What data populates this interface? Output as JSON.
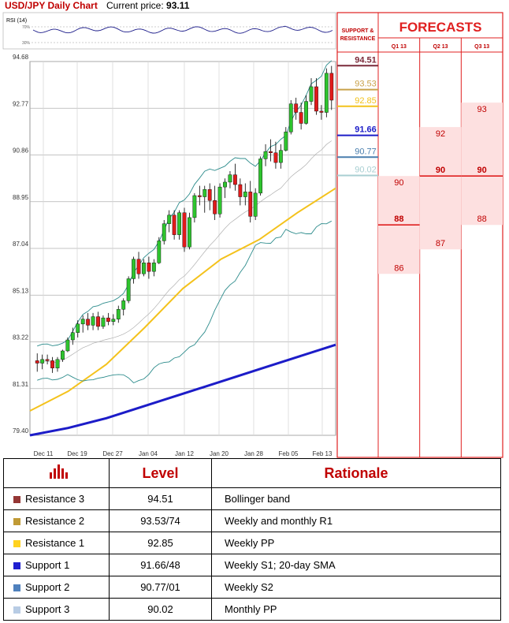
{
  "header": {
    "title": "USD/JPY Daily Chart",
    "current_price_label": "Current price:",
    "current_price": "93.11"
  },
  "rsi": {
    "label": "RSI (14)",
    "upper_tick": "70%",
    "lower_tick": "30%"
  },
  "right_panel": {
    "support_resistance_title": "SUPPORT & RESISTANCE",
    "forecasts_title": "FORECASTS",
    "quarters": [
      "Q1 13",
      "Q2 13",
      "Q3 13"
    ]
  },
  "chart_data": {
    "type": "line",
    "title": "USD/JPY Daily Chart",
    "ylim": [
      79.4,
      94.68
    ],
    "y_ticks": [
      "94.68",
      "92.77",
      "90.86",
      "88.95",
      "87.04",
      "85.13",
      "83.22",
      "81.31",
      "79.40"
    ],
    "x_ticks": [
      "Dec 11",
      "Dec 19",
      "Dec 27",
      "Jan 04",
      "Jan 12",
      "Jan 20",
      "Jan 28",
      "Feb 05",
      "Feb 13"
    ],
    "candles": [
      {
        "o": 82.45,
        "h": 82.75,
        "l": 82.0,
        "c": 82.35
      },
      {
        "o": 82.35,
        "h": 82.7,
        "l": 82.1,
        "c": 82.5
      },
      {
        "o": 82.5,
        "h": 82.7,
        "l": 82.3,
        "c": 82.45
      },
      {
        "o": 82.45,
        "h": 82.6,
        "l": 81.95,
        "c": 82.15
      },
      {
        "o": 82.15,
        "h": 82.6,
        "l": 82.0,
        "c": 82.5
      },
      {
        "o": 82.5,
        "h": 82.9,
        "l": 82.4,
        "c": 82.85
      },
      {
        "o": 82.85,
        "h": 83.4,
        "l": 82.8,
        "c": 83.3
      },
      {
        "o": 83.3,
        "h": 83.8,
        "l": 83.1,
        "c": 83.6
      },
      {
        "o": 83.6,
        "h": 84.1,
        "l": 83.4,
        "c": 83.95
      },
      {
        "o": 83.95,
        "h": 84.3,
        "l": 83.6,
        "c": 84.15
      },
      {
        "o": 84.15,
        "h": 84.4,
        "l": 83.7,
        "c": 83.9
      },
      {
        "o": 83.9,
        "h": 84.4,
        "l": 83.7,
        "c": 84.25
      },
      {
        "o": 84.25,
        "h": 84.45,
        "l": 83.7,
        "c": 83.85
      },
      {
        "o": 83.85,
        "h": 84.3,
        "l": 83.75,
        "c": 84.2
      },
      {
        "o": 84.2,
        "h": 84.4,
        "l": 83.9,
        "c": 84.05
      },
      {
        "o": 84.05,
        "h": 84.35,
        "l": 83.9,
        "c": 84.15
      },
      {
        "o": 84.15,
        "h": 84.7,
        "l": 84.0,
        "c": 84.55
      },
      {
        "o": 84.55,
        "h": 85.0,
        "l": 84.3,
        "c": 84.9
      },
      {
        "o": 84.9,
        "h": 85.9,
        "l": 84.8,
        "c": 85.8
      },
      {
        "o": 85.8,
        "h": 86.7,
        "l": 85.6,
        "c": 86.6
      },
      {
        "o": 86.6,
        "h": 86.9,
        "l": 85.8,
        "c": 86.0
      },
      {
        "o": 86.0,
        "h": 86.6,
        "l": 85.9,
        "c": 86.45
      },
      {
        "o": 86.45,
        "h": 86.7,
        "l": 85.8,
        "c": 86.1
      },
      {
        "o": 86.1,
        "h": 86.6,
        "l": 85.9,
        "c": 86.45
      },
      {
        "o": 86.45,
        "h": 87.5,
        "l": 86.4,
        "c": 87.35
      },
      {
        "o": 87.35,
        "h": 88.2,
        "l": 87.2,
        "c": 88.05
      },
      {
        "o": 88.05,
        "h": 88.6,
        "l": 87.7,
        "c": 88.4
      },
      {
        "o": 88.4,
        "h": 88.6,
        "l": 87.4,
        "c": 87.6
      },
      {
        "o": 87.6,
        "h": 88.6,
        "l": 87.4,
        "c": 88.5
      },
      {
        "o": 88.5,
        "h": 88.7,
        "l": 86.9,
        "c": 87.1
      },
      {
        "o": 87.1,
        "h": 88.5,
        "l": 87.0,
        "c": 88.3
      },
      {
        "o": 88.3,
        "h": 89.3,
        "l": 88.1,
        "c": 89.2
      },
      {
        "o": 89.2,
        "h": 89.6,
        "l": 88.8,
        "c": 89.15
      },
      {
        "o": 89.15,
        "h": 89.6,
        "l": 88.5,
        "c": 89.45
      },
      {
        "o": 89.45,
        "h": 89.7,
        "l": 88.6,
        "c": 89.0
      },
      {
        "o": 89.0,
        "h": 89.6,
        "l": 88.2,
        "c": 88.45
      },
      {
        "o": 88.45,
        "h": 89.7,
        "l": 88.3,
        "c": 89.55
      },
      {
        "o": 89.55,
        "h": 89.9,
        "l": 89.1,
        "c": 89.75
      },
      {
        "o": 89.75,
        "h": 90.2,
        "l": 89.5,
        "c": 90.05
      },
      {
        "o": 90.05,
        "h": 90.5,
        "l": 89.4,
        "c": 89.65
      },
      {
        "o": 89.65,
        "h": 89.9,
        "l": 88.8,
        "c": 89.15
      },
      {
        "o": 89.15,
        "h": 89.7,
        "l": 88.8,
        "c": 89.35
      },
      {
        "o": 89.35,
        "h": 89.8,
        "l": 88.1,
        "c": 88.35
      },
      {
        "o": 88.35,
        "h": 89.5,
        "l": 88.2,
        "c": 89.3
      },
      {
        "o": 89.3,
        "h": 90.8,
        "l": 89.2,
        "c": 90.7
      },
      {
        "o": 90.7,
        "h": 91.3,
        "l": 90.4,
        "c": 91.0
      },
      {
        "o": 91.0,
        "h": 91.5,
        "l": 90.6,
        "c": 90.95
      },
      {
        "o": 90.95,
        "h": 91.4,
        "l": 90.3,
        "c": 90.55
      },
      {
        "o": 90.55,
        "h": 91.3,
        "l": 90.3,
        "c": 91.05
      },
      {
        "o": 91.05,
        "h": 92.0,
        "l": 91.0,
        "c": 91.8
      },
      {
        "o": 91.8,
        "h": 93.1,
        "l": 91.7,
        "c": 92.95
      },
      {
        "o": 92.95,
        "h": 93.2,
        "l": 92.3,
        "c": 92.6
      },
      {
        "o": 92.6,
        "h": 93.0,
        "l": 91.9,
        "c": 92.15
      },
      {
        "o": 92.15,
        "h": 93.3,
        "l": 92.1,
        "c": 93.05
      },
      {
        "o": 93.05,
        "h": 94.0,
        "l": 92.9,
        "c": 93.65
      },
      {
        "o": 93.65,
        "h": 94.0,
        "l": 92.5,
        "c": 92.65
      },
      {
        "o": 92.65,
        "h": 92.9,
        "l": 92.3,
        "c": 92.6
      },
      {
        "o": 92.6,
        "h": 94.4,
        "l": 92.4,
        "c": 94.2
      },
      {
        "o": 94.2,
        "h": 94.5,
        "l": 92.7,
        "c": 93.1
      }
    ],
    "sma50_path": [
      80.4,
      81.2,
      82.3,
      83.8,
      85.4,
      86.6,
      87.4,
      88.5,
      89.5
    ],
    "sma100_path": [
      79.4,
      79.7,
      80.1,
      80.6,
      81.1,
      81.6,
      82.1,
      82.6,
      83.1
    ],
    "levels": [
      {
        "value": 94.51,
        "label": "94.51",
        "color": "#7b2a3a"
      },
      {
        "value": 93.53,
        "label": "93.53",
        "color": "#c9a24a"
      },
      {
        "value": 92.85,
        "label": "92.85",
        "color": "#f2c21c"
      },
      {
        "value": 91.66,
        "label": "91.66",
        "color": "#1c1cc8"
      },
      {
        "value": 90.77,
        "label": "90.77",
        "color": "#4a7fae"
      },
      {
        "value": 90.02,
        "label": "90.02",
        "color": "#a8cfd2"
      }
    ],
    "forecasts": {
      "Q1 13": {
        "high": 90,
        "mid": 88,
        "low": 86
      },
      "Q2 13": {
        "high": 92,
        "mid": 90,
        "low": 87
      },
      "Q3 13": {
        "high": 93,
        "mid": 90,
        "low": 88
      }
    }
  },
  "table": {
    "headers": [
      "Level",
      "Rationale"
    ],
    "rows": [
      {
        "name": "Resistance 3",
        "level": "94.51",
        "rationale": "Bollinger band",
        "color": "#953735"
      },
      {
        "name": "Resistance 2",
        "level": "93.53/74",
        "rationale": "Weekly and monthly R1",
        "color": "#c09a35"
      },
      {
        "name": "Resistance 1",
        "level": "92.85",
        "rationale": "Weekly PP",
        "color": "#ffd21f"
      },
      {
        "name": "Support 1",
        "level": "91.66/48",
        "rationale": "Weekly S1; 20-day SMA",
        "color": "#1f1fd0"
      },
      {
        "name": "Support 2",
        "level": "90.77/01",
        "rationale": "Weekly S2",
        "color": "#4f81bd"
      },
      {
        "name": "Support 3",
        "level": "90.02",
        "rationale": "Monthly PP",
        "color": "#b8cce4"
      }
    ]
  }
}
